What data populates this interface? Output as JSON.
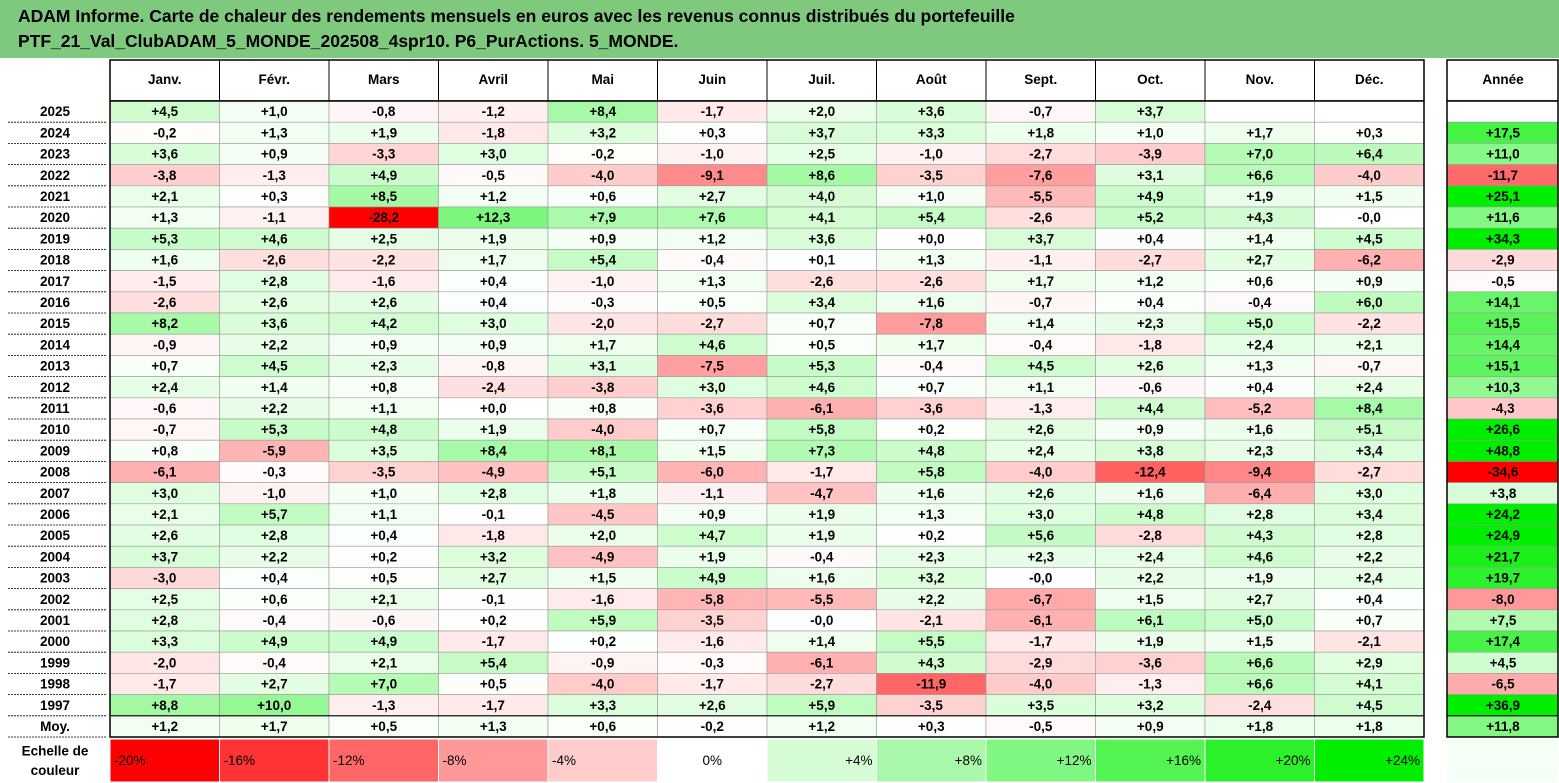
{
  "title": {
    "line1": "ADAM Informe. Carte de chaleur des rendements mensuels en euros avec les revenus connus distribués du portefeuille",
    "line2": "PTF_21_Val_ClubADAM_5_MONDE_202508_4spr10. P6_PurActions. 5_MONDE."
  },
  "colors": {
    "title_bg": "#7fc97f",
    "neutral": "#ffffff",
    "negative_max": "#ff0000",
    "positive_max": "#00ee00"
  },
  "chart_data": {
    "type": "heatmap",
    "columns": [
      "Janv.",
      "Févr.",
      "Mars",
      "Avril",
      "Mai",
      "Juin",
      "Juil.",
      "Août",
      "Sept.",
      "Oct.",
      "Nov.",
      "Déc."
    ],
    "year_column": "Année",
    "rows": [
      {
        "label": "2025",
        "values": [
          "+4,5",
          "+1,0",
          "-0,8",
          "-1,2",
          "+8,4",
          "-1,7",
          "+2,0",
          "+3,6",
          "-0,7",
          "+3,7",
          "",
          ""
        ],
        "year": ""
      },
      {
        "label": "2024",
        "values": [
          "-0,2",
          "+1,3",
          "+1,9",
          "-1,8",
          "+3,2",
          "+0,3",
          "+3,7",
          "+3,3",
          "+1,8",
          "+1,0",
          "+1,7",
          "+0,3"
        ],
        "year": "+17,5"
      },
      {
        "label": "2023",
        "values": [
          "+3,6",
          "+0,9",
          "-3,3",
          "+3,0",
          "-0,2",
          "-1,0",
          "+2,5",
          "-1,0",
          "-2,7",
          "-3,9",
          "+7,0",
          "+6,4"
        ],
        "year": "+11,0"
      },
      {
        "label": "2022",
        "values": [
          "-3,8",
          "-1,3",
          "+4,9",
          "-0,5",
          "-4,0",
          "-9,1",
          "+8,6",
          "-3,5",
          "-7,6",
          "+3,1",
          "+6,6",
          "-4,0"
        ],
        "year": "-11,7"
      },
      {
        "label": "2021",
        "values": [
          "+2,1",
          "+0,3",
          "+8,5",
          "+1,2",
          "+0,6",
          "+2,7",
          "+4,0",
          "+1,0",
          "-5,5",
          "+4,9",
          "+1,9",
          "+1,5"
        ],
        "year": "+25,1"
      },
      {
        "label": "2020",
        "values": [
          "+1,3",
          "-1,1",
          "-28,2",
          "+12,3",
          "+7,9",
          "+7,6",
          "+4,1",
          "+5,4",
          "-2,6",
          "+5,2",
          "+4,3",
          "-0,0"
        ],
        "year": "+11,6"
      },
      {
        "label": "2019",
        "values": [
          "+5,3",
          "+4,6",
          "+2,5",
          "+1,9",
          "+0,9",
          "+1,2",
          "+3,6",
          "+0,0",
          "+3,7",
          "+0,4",
          "+1,4",
          "+4,5"
        ],
        "year": "+34,3"
      },
      {
        "label": "2018",
        "values": [
          "+1,6",
          "-2,6",
          "-2,2",
          "+1,7",
          "+5,4",
          "-0,4",
          "+0,1",
          "+1,3",
          "-1,1",
          "-2,7",
          "+2,7",
          "-6,2"
        ],
        "year": "-2,9"
      },
      {
        "label": "2017",
        "values": [
          "-1,5",
          "+2,8",
          "-1,6",
          "+0,4",
          "-1,0",
          "+1,3",
          "-2,6",
          "-2,6",
          "+1,7",
          "+1,2",
          "+0,6",
          "+0,9"
        ],
        "year": "-0,5"
      },
      {
        "label": "2016",
        "values": [
          "-2,6",
          "+2,6",
          "+2,6",
          "+0,4",
          "-0,3",
          "+0,5",
          "+3,4",
          "+1,6",
          "-0,7",
          "+0,4",
          "-0,4",
          "+6,0"
        ],
        "year": "+14,1"
      },
      {
        "label": "2015",
        "values": [
          "+8,2",
          "+3,6",
          "+4,2",
          "+3,0",
          "-2,0",
          "-2,7",
          "+0,7",
          "-7,8",
          "+1,4",
          "+2,3",
          "+5,0",
          "-2,2"
        ],
        "year": "+15,5"
      },
      {
        "label": "2014",
        "values": [
          "-0,9",
          "+2,2",
          "+0,9",
          "+0,9",
          "+1,7",
          "+4,6",
          "+0,5",
          "+1,7",
          "-0,4",
          "-1,8",
          "+2,4",
          "+2,1"
        ],
        "year": "+14,4"
      },
      {
        "label": "2013",
        "values": [
          "+0,7",
          "+4,5",
          "+2,3",
          "-0,8",
          "+3,1",
          "-7,5",
          "+5,3",
          "-0,4",
          "+4,5",
          "+2,6",
          "+1,3",
          "-0,7"
        ],
        "year": "+15,1"
      },
      {
        "label": "2012",
        "values": [
          "+2,4",
          "+1,4",
          "+0,8",
          "-2,4",
          "-3,8",
          "+3,0",
          "+4,6",
          "+0,7",
          "+1,1",
          "-0,6",
          "+0,4",
          "+2,4"
        ],
        "year": "+10,3"
      },
      {
        "label": "2011",
        "values": [
          "-0,6",
          "+2,2",
          "+1,1",
          "+0,0",
          "+0,8",
          "-3,6",
          "-6,1",
          "-3,6",
          "-1,3",
          "+4,4",
          "-5,2",
          "+8,4"
        ],
        "year": "-4,3"
      },
      {
        "label": "2010",
        "values": [
          "-0,7",
          "+5,3",
          "+4,8",
          "+1,9",
          "-4,0",
          "+0,7",
          "+5,8",
          "+0,2",
          "+2,6",
          "+0,9",
          "+1,6",
          "+5,1"
        ],
        "year": "+26,6"
      },
      {
        "label": "2009",
        "values": [
          "+0,8",
          "-5,9",
          "+3,5",
          "+8,4",
          "+8,1",
          "+1,5",
          "+7,3",
          "+4,8",
          "+2,4",
          "+3,8",
          "+2,3",
          "+3,4"
        ],
        "year": "+48,8"
      },
      {
        "label": "2008",
        "values": [
          "-6,1",
          "-0,3",
          "-3,5",
          "-4,9",
          "+5,1",
          "-6,0",
          "-1,7",
          "+5,8",
          "-4,0",
          "-12,4",
          "-9,4",
          "-2,7"
        ],
        "year": "-34,6"
      },
      {
        "label": "2007",
        "values": [
          "+3,0",
          "-1,0",
          "+1,0",
          "+2,8",
          "+1,8",
          "-1,1",
          "-4,7",
          "+1,6",
          "+2,6",
          "+1,6",
          "-6,4",
          "+3,0"
        ],
        "year": "+3,8"
      },
      {
        "label": "2006",
        "values": [
          "+2,1",
          "+5,7",
          "+1,1",
          "-0,1",
          "-4,5",
          "+0,9",
          "+1,9",
          "+1,3",
          "+3,0",
          "+4,8",
          "+2,8",
          "+3,4"
        ],
        "year": "+24,2"
      },
      {
        "label": "2005",
        "values": [
          "+2,6",
          "+2,8",
          "+0,4",
          "-1,8",
          "+2,0",
          "+4,7",
          "+1,9",
          "+0,2",
          "+5,6",
          "-2,8",
          "+4,3",
          "+2,8"
        ],
        "year": "+24,9"
      },
      {
        "label": "2004",
        "values": [
          "+3,7",
          "+2,2",
          "+0,2",
          "+3,2",
          "-4,9",
          "+1,9",
          "-0,4",
          "+2,3",
          "+2,3",
          "+2,4",
          "+4,6",
          "+2,2"
        ],
        "year": "+21,7"
      },
      {
        "label": "2003",
        "values": [
          "-3,0",
          "+0,4",
          "+0,5",
          "+2,7",
          "+1,5",
          "+4,9",
          "+1,6",
          "+3,2",
          "-0,0",
          "+2,2",
          "+1,9",
          "+2,4"
        ],
        "year": "+19,7"
      },
      {
        "label": "2002",
        "values": [
          "+2,5",
          "+0,6",
          "+2,1",
          "-0,1",
          "-1,6",
          "-5,8",
          "-5,5",
          "+2,2",
          "-6,7",
          "+1,5",
          "+2,7",
          "+0,4"
        ],
        "year": "-8,0"
      },
      {
        "label": "2001",
        "values": [
          "+2,8",
          "-0,4",
          "-0,6",
          "+0,2",
          "+5,9",
          "-3,5",
          "-0,0",
          "-2,1",
          "-6,1",
          "+6,1",
          "+5,0",
          "+0,7"
        ],
        "year": "+7,5"
      },
      {
        "label": "2000",
        "values": [
          "+3,3",
          "+4,9",
          "+4,9",
          "-1,7",
          "+0,2",
          "-1,6",
          "+1,4",
          "+5,5",
          "-1,7",
          "+1,9",
          "+1,5",
          "-2,1"
        ],
        "year": "+17,4"
      },
      {
        "label": "1999",
        "values": [
          "-2,0",
          "-0,4",
          "+2,1",
          "+5,4",
          "-0,9",
          "-0,3",
          "-6,1",
          "+4,3",
          "-2,9",
          "-3,6",
          "+6,6",
          "+2,9"
        ],
        "year": "+4,5"
      },
      {
        "label": "1998",
        "values": [
          "-1,7",
          "+2,7",
          "+7,0",
          "+0,5",
          "-4,0",
          "-1,7",
          "-2,7",
          "-11,9",
          "-4,0",
          "-1,3",
          "+6,6",
          "+4,1"
        ],
        "year": "-6,5"
      },
      {
        "label": "1997",
        "values": [
          "+8,8",
          "+10,0",
          "-1,3",
          "-1,7",
          "+3,3",
          "+2,6",
          "+5,9",
          "-3,5",
          "+3,5",
          "+3,2",
          "-2,4",
          "+4,5"
        ],
        "year": "+36,9"
      }
    ],
    "average": {
      "label": "Moy.",
      "values": [
        "+1,2",
        "+1,7",
        "+0,5",
        "+1,3",
        "+0,6",
        "-0,2",
        "+1,2",
        "+0,3",
        "-0,5",
        "+0,9",
        "+1,8",
        "+1,8"
      ],
      "year": "+11,8"
    },
    "legend": {
      "label_line1": "Echelle de",
      "label_line2": "couleur",
      "stops": [
        {
          "label": "-20%",
          "value": -20
        },
        {
          "label": "-16%",
          "value": -16
        },
        {
          "label": "-12%",
          "value": -12
        },
        {
          "label": "-8%",
          "value": -8
        },
        {
          "label": "-4%",
          "value": -4
        },
        {
          "label": "0%",
          "value": 0
        },
        {
          "label": "+4%",
          "value": 4
        },
        {
          "label": "+8%",
          "value": 8
        },
        {
          "label": "+12%",
          "value": 12
        },
        {
          "label": "+16%",
          "value": 16
        },
        {
          "label": "+20%",
          "value": 20
        },
        {
          "label": "+24%",
          "value": 24
        }
      ]
    },
    "color_scale": {
      "negative_saturation": -20,
      "positive_saturation": 24
    }
  }
}
